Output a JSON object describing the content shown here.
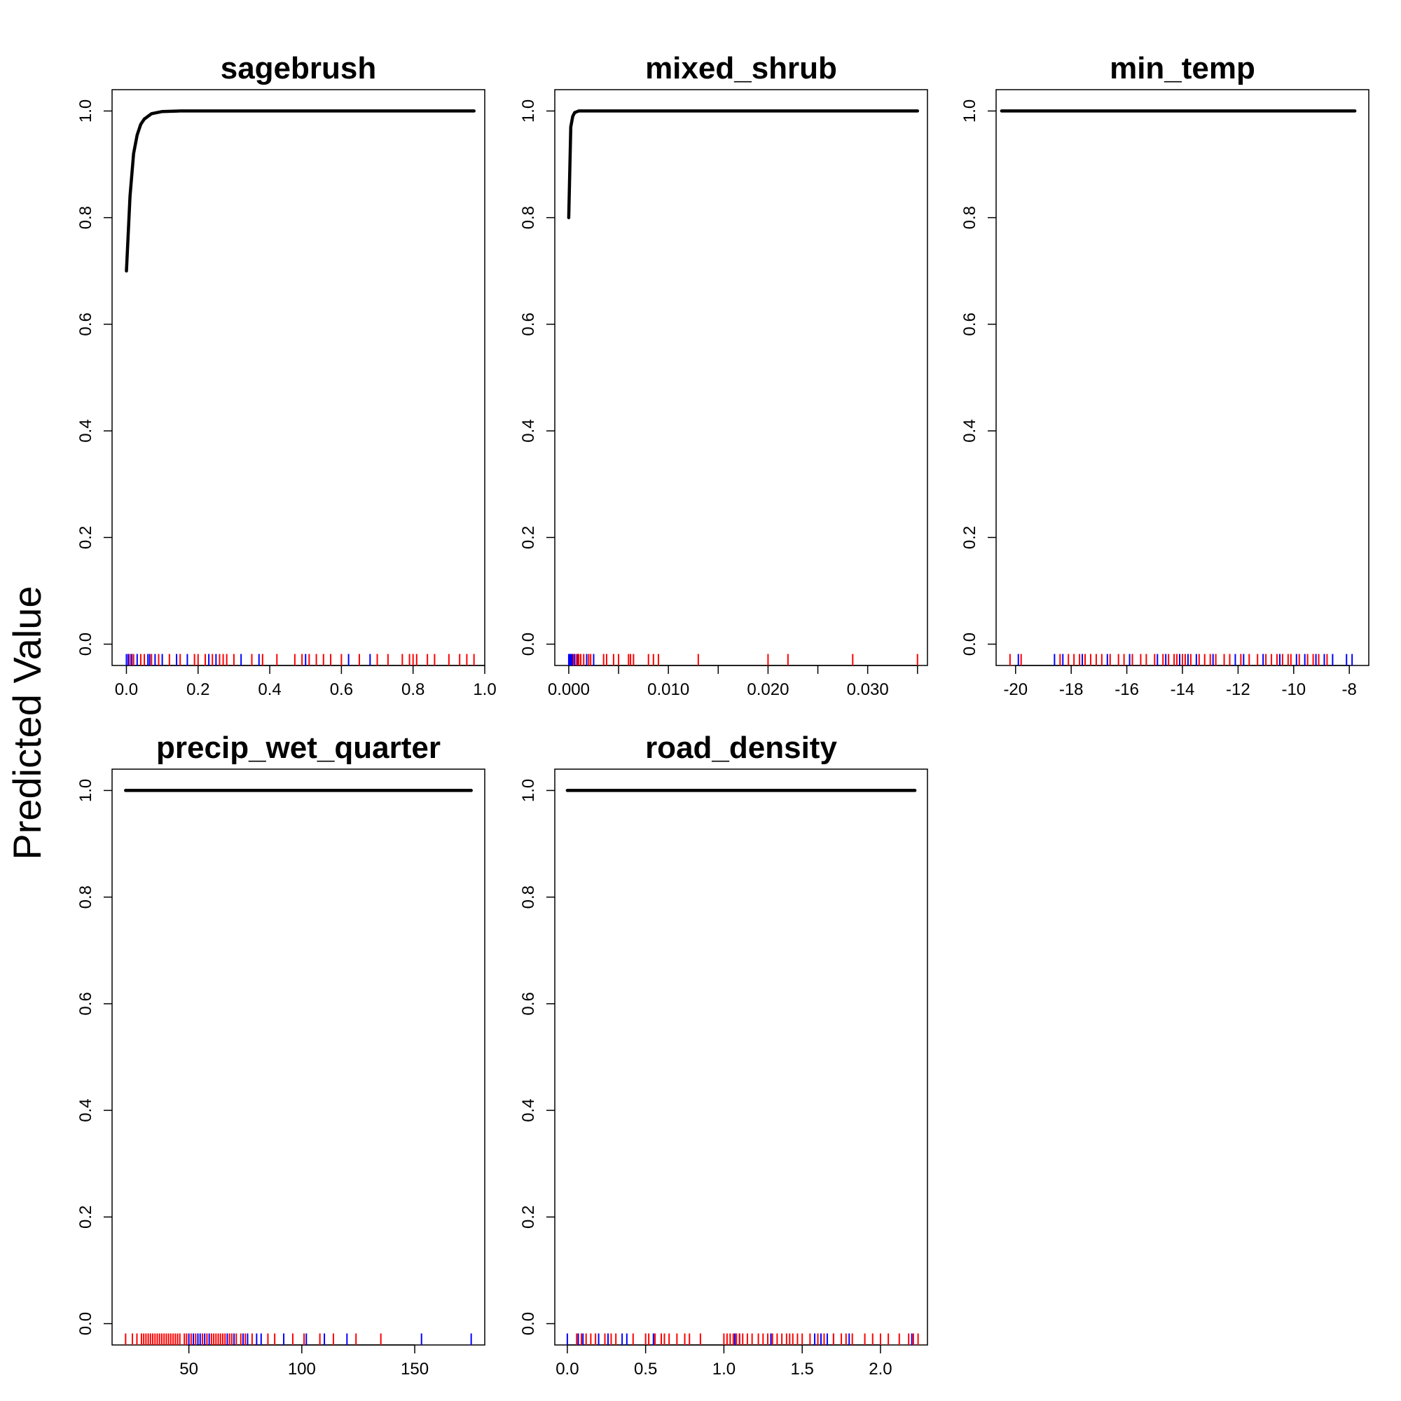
{
  "figure": {
    "ylabel": "Predicted Value"
  },
  "colors": {
    "curve": "#000000",
    "presence_rug": "#ff0000",
    "absence_rug": "#0000ff"
  },
  "chart_data": [
    {
      "type": "line",
      "title": "sagebrush",
      "xlim": [
        -0.04,
        1.0
      ],
      "ylim": [
        -0.04,
        1.04
      ],
      "xticks": [
        0.0,
        0.2,
        0.4,
        0.6,
        0.8,
        1.0
      ],
      "xtick_labels": [
        "0.0",
        "0.2",
        "0.4",
        "0.6",
        "0.8",
        "1.0"
      ],
      "yticks": [
        0.0,
        0.2,
        0.4,
        0.6,
        0.8,
        1.0
      ],
      "ytick_labels": [
        "0.0",
        "0.2",
        "0.4",
        "0.6",
        "0.8",
        "1.0"
      ],
      "series": [
        {
          "x": [
            0.0,
            0.01,
            0.02,
            0.03,
            0.04,
            0.05,
            0.07,
            0.1,
            0.15,
            0.3,
            0.5,
            0.7,
            0.97
          ],
          "y": [
            0.7,
            0.84,
            0.92,
            0.955,
            0.975,
            0.985,
            0.995,
            0.999,
            1.0,
            1.0,
            1.0,
            1.0,
            1.0
          ]
        }
      ],
      "rug_presence": [
        0.01,
        0.02,
        0.04,
        0.05,
        0.07,
        0.09,
        0.12,
        0.15,
        0.19,
        0.2,
        0.22,
        0.24,
        0.26,
        0.27,
        0.28,
        0.3,
        0.35,
        0.38,
        0.42,
        0.47,
        0.49,
        0.51,
        0.53,
        0.55,
        0.57,
        0.6,
        0.65,
        0.7,
        0.73,
        0.77,
        0.79,
        0.8,
        0.81,
        0.84,
        0.86,
        0.9,
        0.93,
        0.95,
        0.97
      ],
      "rug_absence": [
        0.0,
        0.005,
        0.01,
        0.015,
        0.03,
        0.06,
        0.065,
        0.08,
        0.1,
        0.14,
        0.17,
        0.23,
        0.25,
        0.32,
        0.37,
        0.5,
        0.62,
        0.68
      ]
    },
    {
      "type": "line",
      "title": "mixed_shrub",
      "xlim": [
        -0.0014,
        0.036
      ],
      "ylim": [
        -0.04,
        1.04
      ],
      "xticks": [
        0.0,
        0.005,
        0.01,
        0.015,
        0.02,
        0.025,
        0.03,
        0.035
      ],
      "xtick_labels": [
        "0.000",
        "",
        "0.010",
        "",
        "0.020",
        "",
        "0.030",
        ""
      ],
      "yticks": [
        0.0,
        0.2,
        0.4,
        0.6,
        0.8,
        1.0
      ],
      "ytick_labels": [
        "0.0",
        "0.2",
        "0.4",
        "0.6",
        "0.8",
        "1.0"
      ],
      "series": [
        {
          "x": [
            0.0,
            0.0002,
            0.0004,
            0.0006,
            0.001,
            0.002,
            0.01,
            0.02,
            0.035
          ],
          "y": [
            0.8,
            0.97,
            0.99,
            0.997,
            1.0,
            1.0,
            1.0,
            1.0,
            1.0
          ]
        }
      ],
      "rug_presence": [
        0.0005,
        0.0008,
        0.001,
        0.0012,
        0.0015,
        0.002,
        0.0022,
        0.0035,
        0.0038,
        0.0045,
        0.005,
        0.006,
        0.0062,
        0.0065,
        0.008,
        0.0085,
        0.009,
        0.013,
        0.02,
        0.022,
        0.0285,
        0.035
      ],
      "rug_absence": [
        0.0,
        0.0001,
        0.0002,
        0.0003,
        0.0004,
        0.0006,
        0.0009,
        0.0018,
        0.0025
      ]
    },
    {
      "type": "line",
      "title": "min_temp",
      "xlim": [
        -20.7,
        -7.3
      ],
      "ylim": [
        -0.04,
        1.04
      ],
      "xticks": [
        -20,
        -18,
        -16,
        -14,
        -12,
        -10,
        -8
      ],
      "xtick_labels": [
        "-20",
        "-18",
        "-16",
        "-14",
        "-12",
        "-10",
        "-8"
      ],
      "yticks": [
        0.0,
        0.2,
        0.4,
        0.6,
        0.8,
        1.0
      ],
      "ytick_labels": [
        "0.0",
        "0.2",
        "0.4",
        "0.6",
        "0.8",
        "1.0"
      ],
      "series": [
        {
          "x": [
            -20.5,
            -7.8
          ],
          "y": [
            1.0,
            1.0
          ]
        }
      ],
      "rug_presence": [
        -20.2,
        -19.8,
        -18.4,
        -18.1,
        -17.9,
        -17.7,
        -17.5,
        -17.3,
        -17.1,
        -16.9,
        -16.6,
        -16.3,
        -16.1,
        -15.8,
        -15.5,
        -15.3,
        -15.0,
        -14.7,
        -14.5,
        -14.3,
        -14.2,
        -14.0,
        -13.9,
        -13.7,
        -13.4,
        -13.2,
        -13.0,
        -12.8,
        -12.5,
        -12.3,
        -11.9,
        -11.6,
        -11.3,
        -11.0,
        -10.8,
        -10.6,
        -10.4,
        -10.2,
        -10.1,
        -9.8,
        -9.5,
        -9.3,
        -9.1,
        -8.8
      ],
      "rug_absence": [
        -19.9,
        -18.6,
        -18.3,
        -17.6,
        -16.7,
        -15.9,
        -14.9,
        -14.6,
        -14.1,
        -13.8,
        -13.5,
        -12.9,
        -12.1,
        -11.8,
        -11.1,
        -10.5,
        -9.9,
        -9.6,
        -9.2,
        -8.9,
        -8.6,
        -8.1,
        -7.9
      ]
    },
    {
      "type": "line",
      "title": "precip_wet_quarter",
      "xlim": [
        16,
        181
      ],
      "ylim": [
        -0.04,
        1.04
      ],
      "xticks": [
        50,
        100,
        150
      ],
      "xtick_labels": [
        "50",
        "100",
        "150"
      ],
      "yticks": [
        0.0,
        0.2,
        0.4,
        0.6,
        0.8,
        1.0
      ],
      "ytick_labels": [
        "0.0",
        "0.2",
        "0.4",
        "0.6",
        "0.8",
        "1.0"
      ],
      "series": [
        {
          "x": [
            22,
            175
          ],
          "y": [
            1.0,
            1.0
          ]
        }
      ],
      "rug_presence": [
        22,
        25,
        27,
        29,
        30,
        31,
        32,
        33,
        34,
        35,
        36,
        37,
        38,
        39,
        40,
        41,
        42,
        43,
        44,
        45,
        46,
        48,
        49,
        51,
        53,
        56,
        58,
        60,
        61,
        62,
        63,
        64,
        65,
        66,
        68,
        69,
        71,
        73,
        75,
        78,
        85,
        88,
        96,
        101,
        108,
        114,
        124,
        135
      ],
      "rug_absence": [
        50,
        52,
        54,
        55,
        57,
        59,
        67,
        70,
        74,
        76,
        80,
        82,
        92,
        102,
        110,
        120,
        153,
        175
      ]
    },
    {
      "type": "line",
      "title": "road_density",
      "xlim": [
        -0.08,
        2.3
      ],
      "ylim": [
        -0.04,
        1.04
      ],
      "xticks": [
        0.0,
        0.5,
        1.0,
        1.5,
        2.0
      ],
      "xtick_labels": [
        "0.0",
        "0.5",
        "1.0",
        "1.5",
        "2.0"
      ],
      "yticks": [
        0.0,
        0.2,
        0.4,
        0.6,
        0.8,
        1.0
      ],
      "ytick_labels": [
        "0.0",
        "0.2",
        "0.4",
        "0.6",
        "0.8",
        "1.0"
      ],
      "series": [
        {
          "x": [
            0.0,
            2.22
          ],
          "y": [
            1.0,
            1.0
          ]
        }
      ],
      "rug_presence": [
        0.06,
        0.09,
        0.12,
        0.15,
        0.18,
        0.24,
        0.28,
        0.31,
        0.42,
        0.5,
        0.52,
        0.56,
        0.6,
        0.62,
        0.65,
        0.7,
        0.75,
        0.78,
        0.85,
        1.0,
        1.02,
        1.04,
        1.06,
        1.08,
        1.1,
        1.12,
        1.15,
        1.18,
        1.22,
        1.25,
        1.28,
        1.31,
        1.34,
        1.37,
        1.4,
        1.42,
        1.44,
        1.47,
        1.5,
        1.55,
        1.6,
        1.64,
        1.7,
        1.75,
        1.78,
        1.82,
        1.9,
        1.95,
        2.0,
        2.05,
        2.12,
        2.18,
        2.21,
        2.24
      ],
      "rug_absence": [
        0.0,
        0.07,
        0.1,
        0.2,
        0.26,
        0.35,
        0.38,
        0.55,
        1.07,
        1.1,
        1.3,
        1.58,
        1.62,
        1.66,
        1.7,
        1.8,
        2.2
      ]
    }
  ]
}
